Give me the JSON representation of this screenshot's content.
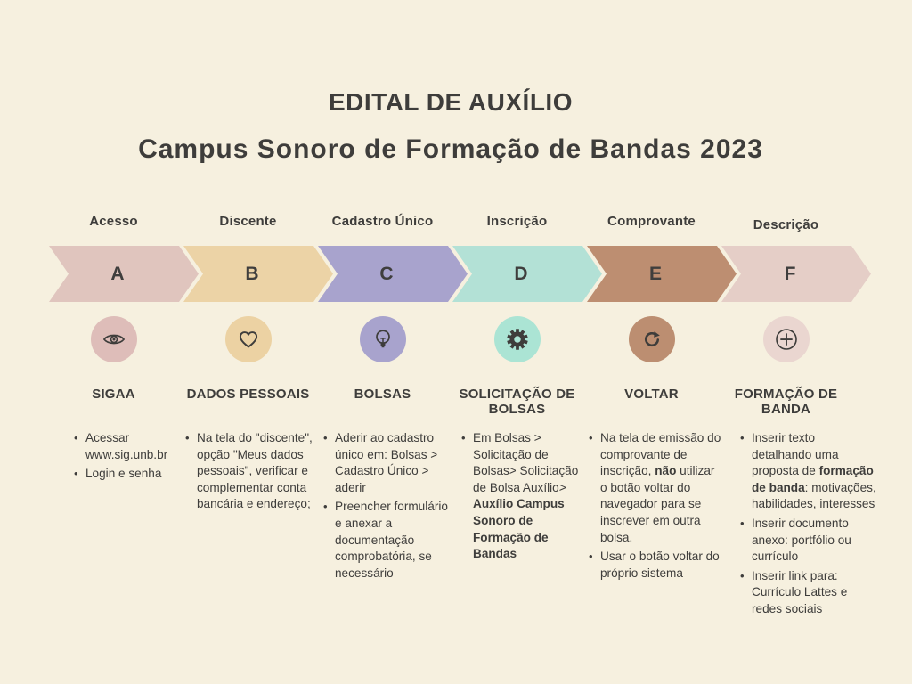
{
  "title": {
    "line1": "EDITAL DE AUXÍLIO",
    "line2": "Campus Sonoro de Formação de Bandas 2023"
  },
  "colors": {
    "background": "#f6f0df",
    "text": "#3e3d3b"
  },
  "steps": [
    {
      "label": "Acesso",
      "letter": "A",
      "arrow_color": "#e0c5be",
      "icon": "eye",
      "icon_bg": "#debdb9",
      "heading": "SIGAA",
      "bullets": [
        [
          {
            "t": "Acessar www.sig.unb.br"
          }
        ],
        [
          {
            "t": "Login e senha"
          }
        ]
      ]
    },
    {
      "label": "Discente",
      "letter": "B",
      "arrow_color": "#ecd3a6",
      "icon": "heart",
      "icon_bg": "#ecd2a3",
      "heading": "DADOS PESSOAIS",
      "bullets": [
        [
          {
            "t": "Na tela do \"discente\", opção \"Meus dados pessoais\", verificar e complementar conta bancária e endereço;"
          }
        ]
      ]
    },
    {
      "label": "Cadastro Único",
      "letter": "C",
      "arrow_color": "#a8a3cd",
      "icon": "lightbulb",
      "icon_bg": "#a8a3cd",
      "heading": "BOLSAS",
      "bullets": [
        [
          {
            "t": "Aderir ao cadastro único em: Bolsas > Cadastro Único > aderir"
          }
        ],
        [
          {
            "t": "Preencher formulário e anexar a documentação comprobatória, se necessário"
          }
        ]
      ]
    },
    {
      "label": "Inscrição",
      "letter": "D",
      "arrow_color": "#b3e1d6",
      "icon": "gear",
      "icon_bg": "#abe4d4",
      "heading": "SOLICITAÇÃO DE BOLSAS",
      "bullets": [
        [
          {
            "t": "Em Bolsas > Solicitação de Bolsas> Solicitação de Bolsa Auxílio> "
          },
          {
            "t": "Auxílio Campus Sonoro de Formação de Bandas",
            "b": true
          }
        ]
      ]
    },
    {
      "label": "Comprovante",
      "letter": "E",
      "arrow_color": "#bd8e71",
      "icon": "refresh",
      "icon_bg": "#bc8e71",
      "heading": "VOLTAR",
      "bullets": [
        [
          {
            "t": "Na tela de emissão do comprovante de inscrição, "
          },
          {
            "t": "não",
            "b": true
          },
          {
            "t": " utilizar o botão voltar do navegador para se inscrever em outra bolsa."
          }
        ],
        [
          {
            "t": "Usar o botão voltar do próprio sistema"
          }
        ]
      ]
    },
    {
      "label": "Descrição",
      "letter": "F",
      "arrow_color": "#e5cec7",
      "icon": "plus-circle",
      "icon_bg": "#ead6d0",
      "heading": "FORMAÇÃO DE BANDA",
      "bullets": [
        [
          {
            "t": "Inserir texto detalhando uma proposta de "
          },
          {
            "t": "formação de banda",
            "b": true
          },
          {
            "t": ": motivações, habilidades, interesses"
          }
        ],
        [
          {
            "t": "Inserir documento anexo: portfólio ou currículo"
          }
        ],
        [
          {
            "t": "Inserir link para: Currículo Lattes e redes sociais"
          }
        ]
      ]
    }
  ]
}
